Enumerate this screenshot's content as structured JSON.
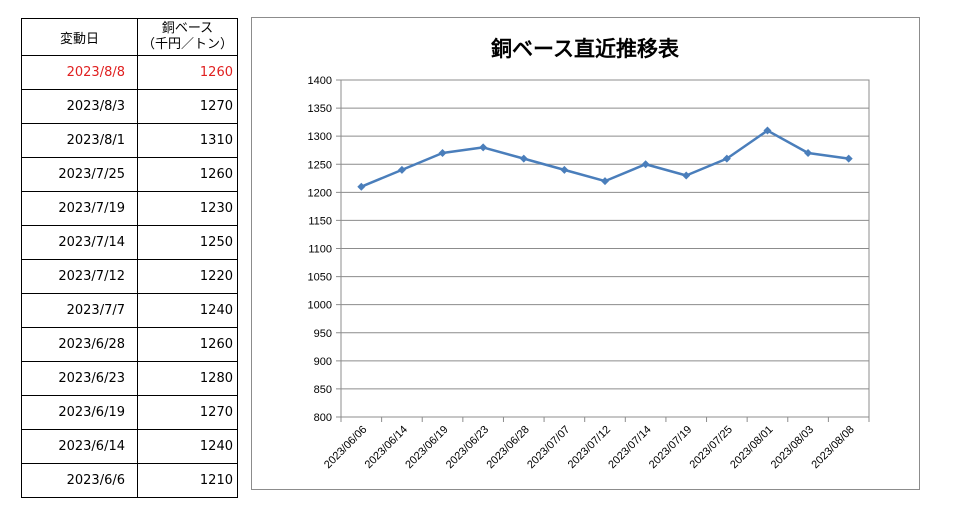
{
  "table": {
    "header_date": "変動日",
    "header_base_line1": "銅ベース",
    "header_base_line2": "（千円／トン）",
    "rows": [
      {
        "date": "2023/8/8",
        "value": "1260"
      },
      {
        "date": "2023/8/3",
        "value": "1270"
      },
      {
        "date": "2023/8/1",
        "value": "1310"
      },
      {
        "date": "2023/7/25",
        "value": "1260"
      },
      {
        "date": "2023/7/19",
        "value": "1230"
      },
      {
        "date": "2023/7/14",
        "value": "1250"
      },
      {
        "date": "2023/7/12",
        "value": "1220"
      },
      {
        "date": "2023/7/7",
        "value": "1240"
      },
      {
        "date": "2023/6/28",
        "value": "1260"
      },
      {
        "date": "2023/6/23",
        "value": "1280"
      },
      {
        "date": "2023/6/19",
        "value": "1270"
      },
      {
        "date": "2023/6/14",
        "value": "1240"
      },
      {
        "date": "2023/6/6",
        "value": "1210"
      }
    ],
    "highlight_color": "#e02020"
  },
  "chart_data": {
    "type": "line",
    "title": "銅ベース直近推移表",
    "xlabel": "",
    "ylabel": "",
    "categories": [
      "2023/06/06",
      "2023/06/14",
      "2023/06/19",
      "2023/06/23",
      "2023/06/28",
      "2023/07/07",
      "2023/07/12",
      "2023/07/14",
      "2023/07/19",
      "2023/07/25",
      "2023/08/01",
      "2023/08/03",
      "2023/08/08"
    ],
    "series": [
      {
        "values": [
          1210,
          1240,
          1270,
          1280,
          1260,
          1240,
          1220,
          1250,
          1230,
          1260,
          1310,
          1270,
          1260
        ],
        "color": "#4a7ebb"
      }
    ],
    "ylim": [
      800,
      1400
    ],
    "yticks": [
      800,
      850,
      900,
      950,
      1000,
      1050,
      1100,
      1150,
      1200,
      1250,
      1300,
      1350,
      1400
    ],
    "grid": true,
    "legend": "none",
    "marker": "diamond"
  }
}
